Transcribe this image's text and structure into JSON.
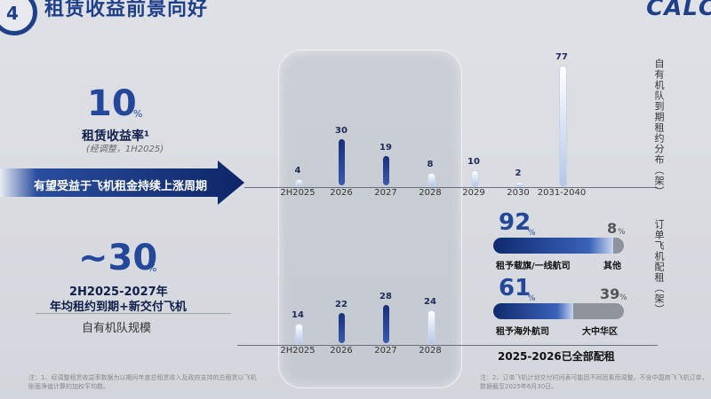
{
  "header": {
    "page_number": "4",
    "title": "租赁收益前景向好",
    "logo": "CALC"
  },
  "metric_yield": {
    "value": "10",
    "unit": "%",
    "label": "租赁收益率¹",
    "note": "(经调整，1H2025)"
  },
  "banner": {
    "text": "有望受益于飞机租金持续上涨周期"
  },
  "metric_fleet": {
    "value": "~30",
    "unit": "%",
    "label_line1": "2H2025-2027年",
    "label_line2": "年均租约到期+新交付飞机",
    "sub": "自有机队规模"
  },
  "lease_expiry_chart": {
    "axis_label": "自有机队到期租约分布（架）",
    "categories": [
      "2H2025",
      "2026",
      "2027",
      "2028",
      "2029",
      "2030",
      "2031-2040"
    ],
    "values": [
      4,
      30,
      19,
      8,
      10,
      2,
      77
    ],
    "highlight": [
      false,
      true,
      true,
      false,
      false,
      false,
      false
    ]
  },
  "order_placement_chart": {
    "axis_label": "订单飞机配租（架）",
    "categories": [
      "2H2025",
      "2026",
      "2027",
      "2028"
    ],
    "values": [
      14,
      22,
      28,
      24
    ],
    "highlight": [
      false,
      true,
      true,
      false
    ],
    "footer": "2025-2026已全部配租"
  },
  "placement_split": {
    "row1": {
      "main_pct": "92",
      "main_unit": "%",
      "main_label": "租予载旗/一线航司",
      "other_pct": "8",
      "other_unit": "%",
      "other_label": "其他",
      "fill": 0.92
    },
    "row2": {
      "main_pct": "61",
      "main_unit": "%",
      "main_label": "租予海外航司",
      "other_pct": "39",
      "other_unit": "%",
      "other_label": "大中华区",
      "fill": 0.61
    }
  },
  "footnotes": {
    "left": "注：1、经调整租赁收益率数据为以期间年度总租赁收入及政府支持的总租赁以飞机账面净值计算的加权平均数。",
    "right": "注：2、订单飞机计划交付时间表可能因不同因素而调整，不含中国商飞飞机订单，数据截至2025年6月30日。"
  },
  "colors": {
    "brand": "#1e3f8a",
    "accent": "#23479a",
    "bar_dark": "#1a2f7a"
  }
}
